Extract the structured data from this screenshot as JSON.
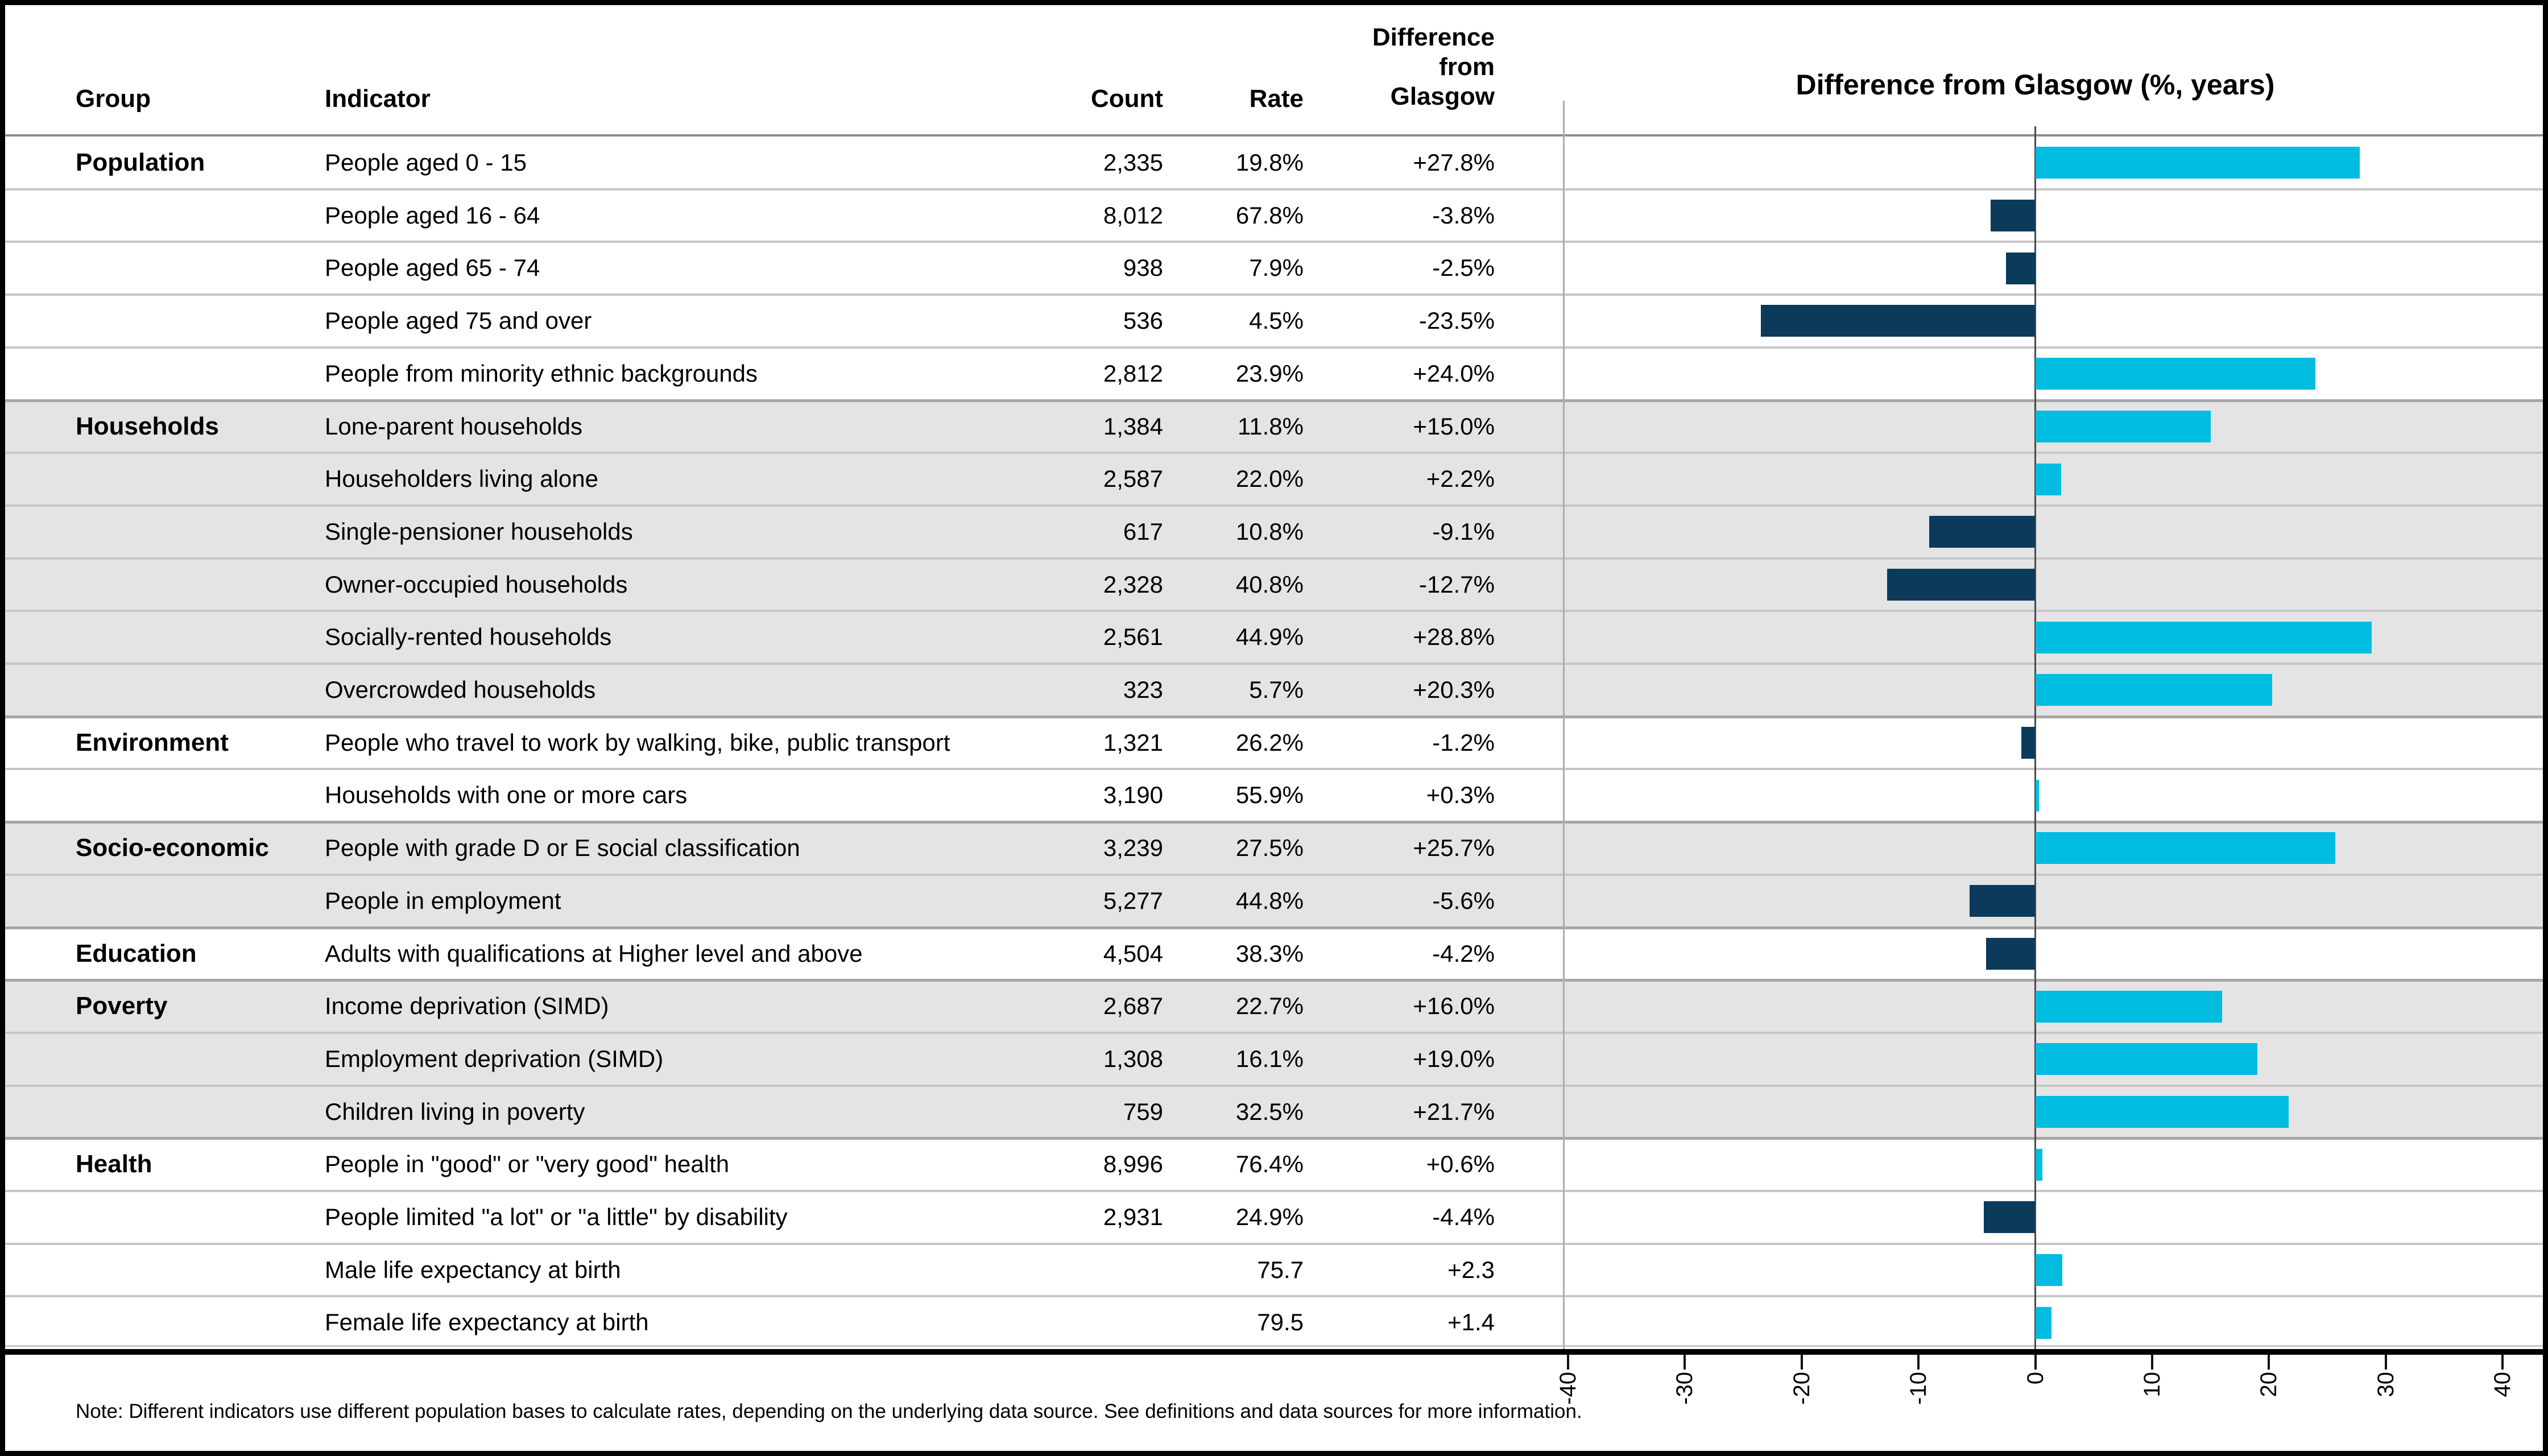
{
  "table": {
    "headers": {
      "group": "Group",
      "indicator": "Indicator",
      "count": "Count",
      "rate": "Rate",
      "difference": "Difference from Glasgow"
    },
    "rows": [
      {
        "group": "Population",
        "indicator": "People aged 0 - 15",
        "count": "2,335",
        "rate": "19.8%",
        "difference": "+27.8%",
        "value": 27.8,
        "shaded": false,
        "group_start": true
      },
      {
        "group": "",
        "indicator": "People aged 16 - 64",
        "count": "8,012",
        "rate": "67.8%",
        "difference": "-3.8%",
        "value": -3.8,
        "shaded": false,
        "group_start": false
      },
      {
        "group": "",
        "indicator": "People aged 65 - 74",
        "count": "938",
        "rate": "7.9%",
        "difference": "-2.5%",
        "value": -2.5,
        "shaded": false,
        "group_start": false
      },
      {
        "group": "",
        "indicator": "People aged 75 and over",
        "count": "536",
        "rate": "4.5%",
        "difference": "-23.5%",
        "value": -23.5,
        "shaded": false,
        "group_start": false
      },
      {
        "group": "",
        "indicator": "People from minority ethnic backgrounds",
        "count": "2,812",
        "rate": "23.9%",
        "difference": "+24.0%",
        "value": 24.0,
        "shaded": false,
        "group_start": false
      },
      {
        "group": "Households",
        "indicator": "Lone-parent households",
        "count": "1,384",
        "rate": "11.8%",
        "difference": "+15.0%",
        "value": 15.0,
        "shaded": true,
        "group_start": true
      },
      {
        "group": "",
        "indicator": "Householders living alone",
        "count": "2,587",
        "rate": "22.0%",
        "difference": "+2.2%",
        "value": 2.2,
        "shaded": true,
        "group_start": false
      },
      {
        "group": "",
        "indicator": "Single-pensioner households",
        "count": "617",
        "rate": "10.8%",
        "difference": "-9.1%",
        "value": -9.1,
        "shaded": true,
        "group_start": false
      },
      {
        "group": "",
        "indicator": "Owner-occupied households",
        "count": "2,328",
        "rate": "40.8%",
        "difference": "-12.7%",
        "value": -12.7,
        "shaded": true,
        "group_start": false
      },
      {
        "group": "",
        "indicator": "Socially-rented households",
        "count": "2,561",
        "rate": "44.9%",
        "difference": "+28.8%",
        "value": 28.8,
        "shaded": true,
        "group_start": false
      },
      {
        "group": "",
        "indicator": "Overcrowded households",
        "count": "323",
        "rate": "5.7%",
        "difference": "+20.3%",
        "value": 20.3,
        "shaded": true,
        "group_start": false
      },
      {
        "group": "Environment",
        "indicator": "People who travel to work by walking, bike, public transport",
        "count": "1,321",
        "rate": "26.2%",
        "difference": "-1.2%",
        "value": -1.2,
        "shaded": false,
        "group_start": true
      },
      {
        "group": "",
        "indicator": "Households with one or more cars",
        "count": "3,190",
        "rate": "55.9%",
        "difference": "+0.3%",
        "value": 0.3,
        "shaded": false,
        "group_start": false
      },
      {
        "group": "Socio-economic",
        "indicator": "People with grade D or E social classification",
        "count": "3,239",
        "rate": "27.5%",
        "difference": "+25.7%",
        "value": 25.7,
        "shaded": true,
        "group_start": true
      },
      {
        "group": "",
        "indicator": "People in employment",
        "count": "5,277",
        "rate": "44.8%",
        "difference": "-5.6%",
        "value": -5.6,
        "shaded": true,
        "group_start": false
      },
      {
        "group": "Education",
        "indicator": "Adults with qualifications at Higher level and above",
        "count": "4,504",
        "rate": "38.3%",
        "difference": "-4.2%",
        "value": -4.2,
        "shaded": false,
        "group_start": true
      },
      {
        "group": "Poverty",
        "indicator": "Income deprivation (SIMD)",
        "count": "2,687",
        "rate": "22.7%",
        "difference": "+16.0%",
        "value": 16.0,
        "shaded": true,
        "group_start": true
      },
      {
        "group": "",
        "indicator": "Employment deprivation (SIMD)",
        "count": "1,308",
        "rate": "16.1%",
        "difference": "+19.0%",
        "value": 19.0,
        "shaded": true,
        "group_start": false
      },
      {
        "group": "",
        "indicator": "Children living in poverty",
        "count": "759",
        "rate": "32.5%",
        "difference": "+21.7%",
        "value": 21.7,
        "shaded": true,
        "group_start": false
      },
      {
        "group": "Health",
        "indicator": "People in \"good\" or \"very good\" health",
        "count": "8,996",
        "rate": "76.4%",
        "difference": "+0.6%",
        "value": 0.6,
        "shaded": false,
        "group_start": true
      },
      {
        "group": "",
        "indicator": "People limited \"a lot\" or \"a little\" by disability",
        "count": "2,931",
        "rate": "24.9%",
        "difference": "-4.4%",
        "value": -4.4,
        "shaded": false,
        "group_start": false
      },
      {
        "group": "",
        "indicator": "Male life expectancy at birth",
        "count": "",
        "rate": "75.7",
        "difference": "+2.3",
        "value": 2.3,
        "shaded": false,
        "group_start": false
      },
      {
        "group": "",
        "indicator": "Female life expectancy at birth",
        "count": "",
        "rate": "79.5",
        "difference": "+1.4",
        "value": 1.4,
        "shaded": false,
        "group_start": false
      }
    ]
  },
  "chart": {
    "title": "Difference from Glasgow (%, years)",
    "axis_min": -40,
    "axis_max": 40,
    "ticks": [
      -40,
      -30,
      -20,
      -10,
      0,
      10,
      20,
      30,
      40
    ],
    "positive_color": "#00BCE0",
    "negative_color": "#0B3A5B"
  },
  "note": "Note: Different indicators use different population bases to calculate rates, depending on the underlying data source. See definitions and data sources for more information.",
  "chart_data": {
    "type": "bar",
    "orientation": "horizontal",
    "title": "Difference from Glasgow (%, years)",
    "categories": [
      "People aged 0 - 15",
      "People aged 16 - 64",
      "People aged 65 - 74",
      "People aged 75 and over",
      "People from minority ethnic backgrounds",
      "Lone-parent households",
      "Householders living alone",
      "Single-pensioner households",
      "Owner-occupied households",
      "Socially-rented households",
      "Overcrowded households",
      "People who travel to work by walking, bike, public transport",
      "Households with one or more cars",
      "People with grade D or E social classification",
      "People in employment",
      "Adults with qualifications at Higher level and above",
      "Income deprivation (SIMD)",
      "Employment deprivation (SIMD)",
      "Children living in poverty",
      "People in \"good\" or \"very good\" health",
      "People limited \"a lot\" or \"a little\" by disability",
      "Male life expectancy at birth",
      "Female life expectancy at birth"
    ],
    "values": [
      27.8,
      -3.8,
      -2.5,
      -23.5,
      24.0,
      15.0,
      2.2,
      -9.1,
      -12.7,
      28.8,
      20.3,
      -1.2,
      0.3,
      25.7,
      -5.6,
      -4.2,
      16.0,
      19.0,
      21.7,
      0.6,
      -4.4,
      2.3,
      1.4
    ],
    "xlim": [
      -40,
      40
    ],
    "tick_values": [
      -40,
      -30,
      -20,
      -10,
      0,
      10,
      20,
      30,
      40
    ],
    "grid": false,
    "legend": "none",
    "color_rule": {
      "positive": "#00BCE0",
      "negative": "#0B3A5B"
    }
  }
}
